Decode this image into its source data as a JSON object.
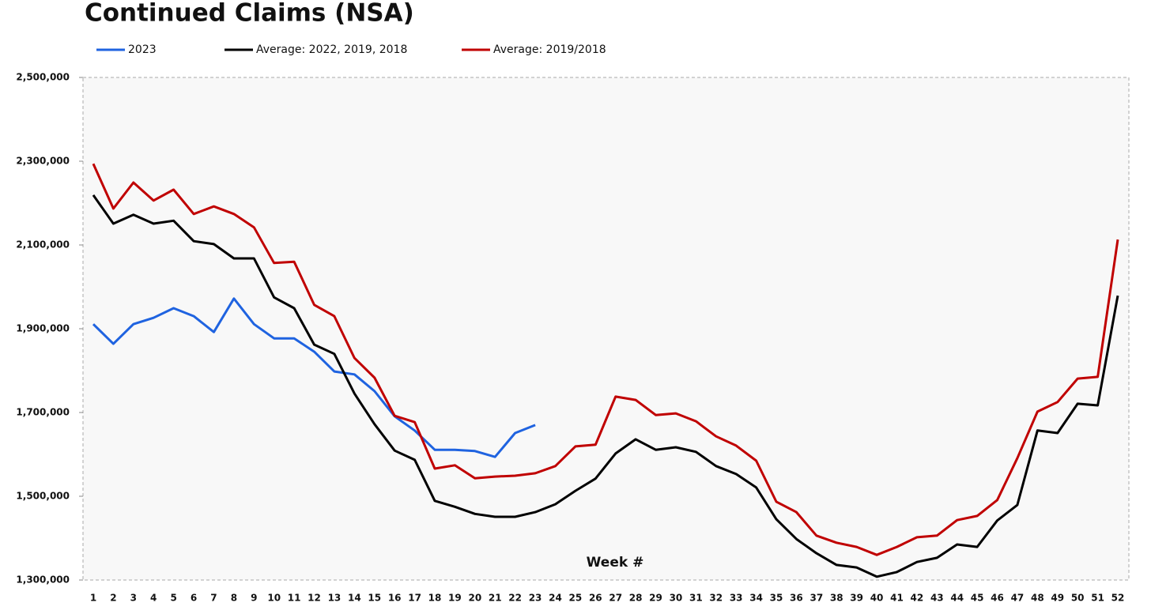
{
  "chart_data": {
    "type": "line",
    "title": "Continued Claims (NSA)",
    "x_label": "Week #",
    "categories": [
      "1",
      "2",
      "3",
      "4",
      "5",
      "6",
      "7",
      "8",
      "9",
      "10",
      "11",
      "12",
      "13",
      "14",
      "15",
      "16",
      "17",
      "18",
      "19",
      "20",
      "21",
      "22",
      "23",
      "24",
      "25",
      "26",
      "27",
      "28",
      "29",
      "30",
      "31",
      "32",
      "33",
      "34",
      "35",
      "36",
      "37",
      "38",
      "39",
      "40",
      "41",
      "42",
      "43",
      "44",
      "45",
      "46",
      "47",
      "48",
      "49",
      "50",
      "51",
      "52"
    ],
    "ylim": [
      1300000,
      2500000
    ],
    "yticks": [
      {
        "value": 1300000,
        "label": "1,300,000"
      },
      {
        "value": 1500000,
        "label": "1,500,000"
      },
      {
        "value": 1700000,
        "label": "1,700,000"
      },
      {
        "value": 1900000,
        "label": "1,900,000"
      },
      {
        "value": 2100000,
        "label": "2,100,000"
      },
      {
        "value": 2300000,
        "label": "2,300,000"
      },
      {
        "value": 2500000,
        "label": "2,500,000"
      }
    ],
    "series": [
      {
        "name": "2023",
        "color": "#1f63e0",
        "values": [
          1911000,
          1864000,
          1911000,
          1926000,
          1949000,
          1930000,
          1892000,
          1972000,
          1911000,
          1877000,
          1877000,
          1845000,
          1798000,
          1791000,
          1751000,
          1691000,
          1657000,
          1611000,
          1611000,
          1608000,
          1594000,
          1651000,
          1670000,
          null,
          null,
          null,
          null,
          null,
          null,
          null,
          null,
          null,
          null,
          null,
          null,
          null,
          null,
          null,
          null,
          null,
          null,
          null,
          null,
          null,
          null,
          null,
          null,
          null,
          null,
          null,
          null,
          null
        ]
      },
      {
        "name": "Average: 2022, 2019, 2018",
        "color": "#000000",
        "values": [
          2219000,
          2151000,
          2172000,
          2151000,
          2158000,
          2109000,
          2102000,
          2068000,
          2068000,
          1975000,
          1949000,
          1862000,
          1840000,
          1745000,
          1672000,
          1609000,
          1587000,
          1489000,
          1475000,
          1458000,
          1451000,
          1451000,
          1462000,
          1481000,
          1513000,
          1542000,
          1602000,
          1636000,
          1611000,
          1617000,
          1606000,
          1572000,
          1553000,
          1521000,
          1445000,
          1398000,
          1364000,
          1336000,
          1330000,
          1308000,
          1319000,
          1343000,
          1353000,
          1385000,
          1379000,
          1442000,
          1479000,
          1657000,
          1651000,
          1721000,
          1717000,
          1979000
        ]
      },
      {
        "name": "Average: 2019/2018",
        "color": "#c00000",
        "values": [
          2294000,
          2187000,
          2249000,
          2206000,
          2232000,
          2174000,
          2192000,
          2174000,
          2142000,
          2057000,
          2060000,
          1957000,
          1930000,
          1830000,
          1783000,
          1692000,
          1677000,
          1566000,
          1574000,
          1543000,
          1547000,
          1549000,
          1555000,
          1572000,
          1619000,
          1623000,
          1738000,
          1730000,
          1694000,
          1698000,
          1679000,
          1643000,
          1621000,
          1585000,
          1487000,
          1462000,
          1406000,
          1389000,
          1379000,
          1360000,
          1379000,
          1402000,
          1406000,
          1443000,
          1453000,
          1491000,
          1591000,
          1702000,
          1725000,
          1781000,
          1785000,
          2113000
        ]
      }
    ],
    "legend": "top-left"
  }
}
